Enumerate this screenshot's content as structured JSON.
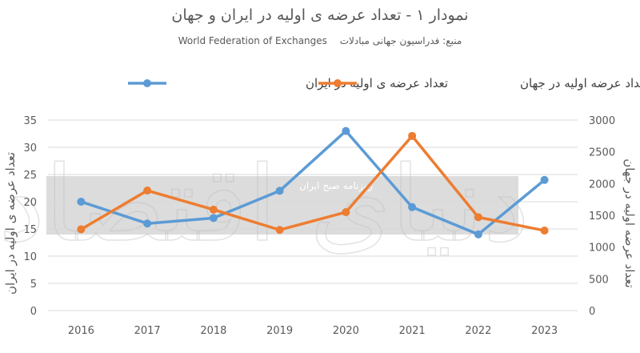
{
  "title": "نمودار ۱ - تعداد عرضه ی اولیه در ایران و جهان",
  "source_label": "منبع: فدراسیون جهانی مبادلات",
  "source_en": "World Federation of Exchanges",
  "watermark": {
    "large_text": "دنیای اقتصاد",
    "box_text": "روزنامه صبح ایران"
  },
  "colors": {
    "iran": "#5B9BD5",
    "world": "#ED7D31",
    "grid": "#D9D9D9",
    "watermark_box": "#D0D0D0"
  },
  "chart_data": {
    "type": "line",
    "title": "نمودار ۱ - تعداد عرضه ی اولیه در ایران و جهان",
    "categories": [
      "2016",
      "2017",
      "2018",
      "2019",
      "2020",
      "2021",
      "2022",
      "2023"
    ],
    "ylabel_left": "تعداد عرضه ی اولیه در ایران",
    "ylabel_right": "تعداد عرضه اولیه در جهان",
    "ylim_left": [
      0,
      35
    ],
    "yticks_left": [
      0,
      5,
      10,
      15,
      20,
      25,
      30,
      35
    ],
    "ylim_right": [
      0,
      3000
    ],
    "yticks_right": [
      0,
      500,
      1000,
      1500,
      2000,
      2500,
      3000
    ],
    "grid": true,
    "legend_position": "top",
    "series": [
      {
        "name": "تعداد عرضه ی اولیه در ایران",
        "axis": "left",
        "color": "#5B9BD5",
        "values": [
          20,
          16,
          17,
          22,
          33,
          19,
          14,
          24
        ]
      },
      {
        "name": "تعداد عرضه اولیه در جهان",
        "axis": "right",
        "color": "#ED7D31",
        "values": [
          1280,
          1890,
          1590,
          1270,
          1550,
          2750,
          1470,
          1260
        ]
      }
    ]
  }
}
